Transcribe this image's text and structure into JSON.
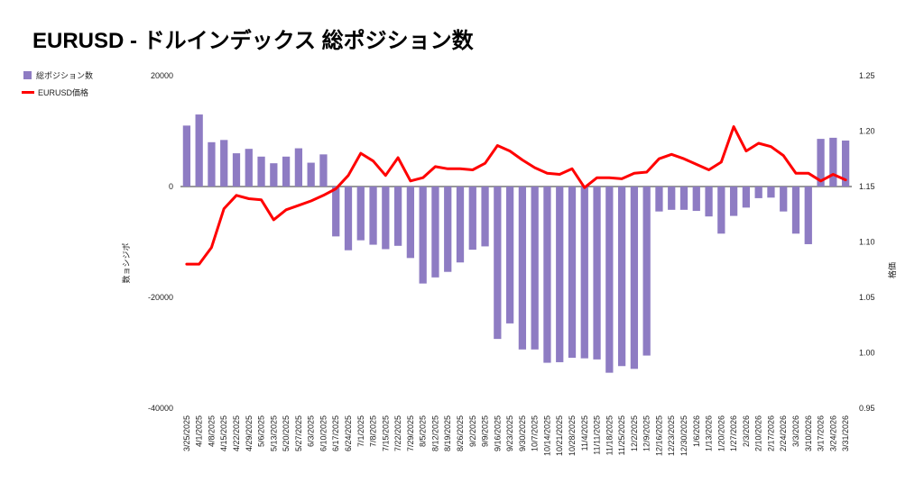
{
  "chart_data": {
    "type": "bar",
    "title": "EURUSD - ドルインデックス 総ポジション数",
    "ylabel_left": "数ョシジポ",
    "ylabel_right": "格価",
    "ylim_left": [
      -40000,
      20000
    ],
    "ylim_right": [
      0.95,
      1.25
    ],
    "yticks_left": [
      "20000",
      "0",
      "-20000",
      "-40000"
    ],
    "yticks_right": [
      "1.25",
      "1.20",
      "1.15",
      "1.10",
      "1.05",
      "1.00",
      "0.95"
    ],
    "legend": {
      "placement": "top-left",
      "entries": [
        "総ポジション数",
        "EURUSD価格"
      ]
    },
    "colors": {
      "bars": "#8e7cc3",
      "line": "#ff0000"
    },
    "categories": [
      "3/25/2025",
      "4/1/2025",
      "4/8/2025",
      "4/15/2025",
      "4/22/2025",
      "4/29/2025",
      "5/6/2025",
      "5/13/2025",
      "5/20/2025",
      "5/27/2025",
      "6/3/2025",
      "6/10/2025",
      "6/17/2025",
      "6/24/2025",
      "7/1/2025",
      "7/8/2025",
      "7/15/2025",
      "7/22/2025",
      "7/29/2025",
      "8/5/2025",
      "8/12/2025",
      "8/19/2025",
      "8/26/2025",
      "9/2/2025",
      "9/9/2025",
      "9/16/2025",
      "9/23/2025",
      "9/30/2025",
      "10/7/2025",
      "10/14/2025",
      "10/21/2025",
      "10/28/2025",
      "11/4/2025",
      "11/11/2025",
      "11/18/2025",
      "11/25/2025",
      "12/2/2025",
      "12/9/2025",
      "12/16/2025",
      "12/23/2025",
      "12/30/2025",
      "1/6/2026",
      "1/13/2026",
      "1/20/2026",
      "1/27/2026",
      "2/3/2026",
      "2/10/2026",
      "2/17/2026",
      "2/24/2026",
      "3/3/2026",
      "3/10/2026",
      "3/17/2026",
      "3/24/2026",
      "3/31/2026"
    ],
    "series": [
      {
        "name": "総ポジション数",
        "type": "bar",
        "values": [
          11000,
          13000,
          8000,
          8400,
          6000,
          6800,
          5400,
          4200,
          5400,
          6900,
          4300,
          5800,
          -9000,
          -11500,
          -9700,
          -10500,
          -11300,
          -10700,
          -12900,
          -17500,
          -16400,
          -15400,
          -13700,
          -11400,
          -10800,
          -27500,
          -24700,
          -29400,
          -29400,
          -31800,
          -31700,
          -30900,
          -31000,
          -31200,
          -33600,
          -32400,
          -32900,
          -30500,
          -4500,
          -4200,
          -4200,
          -4400,
          -5400,
          -8500,
          -5300,
          -3800,
          -2100,
          -2000,
          -4500,
          -8500,
          -10400,
          8600,
          8800,
          8300
        ]
      },
      {
        "name": "EURUSD価格",
        "type": "line",
        "values": [
          1.08,
          1.08,
          1.095,
          1.13,
          1.142,
          1.139,
          1.138,
          1.12,
          1.129,
          1.133,
          1.137,
          1.142,
          1.148,
          1.16,
          1.18,
          1.173,
          1.16,
          1.176,
          1.155,
          1.158,
          1.168,
          1.166,
          1.166,
          1.165,
          1.171,
          1.187,
          1.182,
          1.174,
          1.167,
          1.162,
          1.161,
          1.166,
          1.149,
          1.158,
          1.158,
          1.157,
          1.162,
          1.163,
          1.175,
          1.179,
          1.175,
          1.17,
          1.165,
          1.172,
          1.204,
          1.182,
          1.189,
          1.186,
          1.178,
          1.162,
          1.162,
          1.155,
          1.161,
          1.156
        ]
      }
    ]
  }
}
